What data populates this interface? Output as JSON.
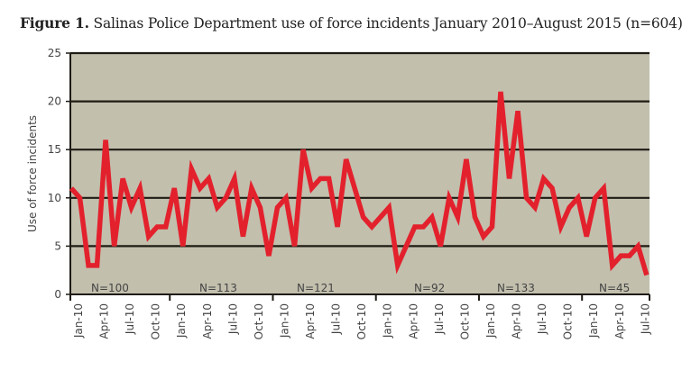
{
  "chart_data": {
    "type": "line",
    "title_prefix": "Figure 1.",
    "title": "Salinas Police Department use of force incidents January 2010–August 2015 (n=604)",
    "xlabel": "",
    "ylabel": "Use of force incidents",
    "ylim": [
      0,
      25
    ],
    "yticks": [
      0,
      5,
      10,
      15,
      20,
      25
    ],
    "grid": true,
    "background_color": "#c2bfad",
    "line_color": "#e3212d",
    "x_tick_labels": [
      "Jan-10",
      "Apr-10",
      "Jul-10",
      "Oct-10",
      "Jan-10",
      "Apr-10",
      "Jul-10",
      "Oct-10",
      "Jan-10",
      "Apr-10",
      "Jul-10",
      "Oct-10",
      "Jan-10",
      "Apr-10",
      "Jul-10",
      "Oct-10",
      "Jan-10",
      "Apr-10",
      "Jul-10",
      "Oct-10",
      "Jan-10",
      "Apr-10",
      "Jul-10"
    ],
    "values": [
      11,
      10,
      3,
      3,
      16,
      5,
      12,
      9,
      11,
      6,
      7,
      7,
      11,
      5,
      13,
      11,
      12,
      9,
      10,
      12,
      6,
      11,
      9,
      4,
      9,
      10,
      5,
      15,
      11,
      12,
      12,
      7,
      14,
      11,
      8,
      7,
      8,
      9,
      3,
      5,
      7,
      7,
      8,
      5,
      10,
      8,
      14,
      8,
      6,
      7,
      21,
      12,
      19,
      10,
      9,
      12,
      11,
      7,
      9,
      10,
      6,
      10,
      11,
      3,
      4,
      4,
      5,
      2
    ],
    "annotations": [
      "N=100",
      "N=113",
      "N=121",
      "N=92",
      "N=133",
      "N=45"
    ]
  }
}
